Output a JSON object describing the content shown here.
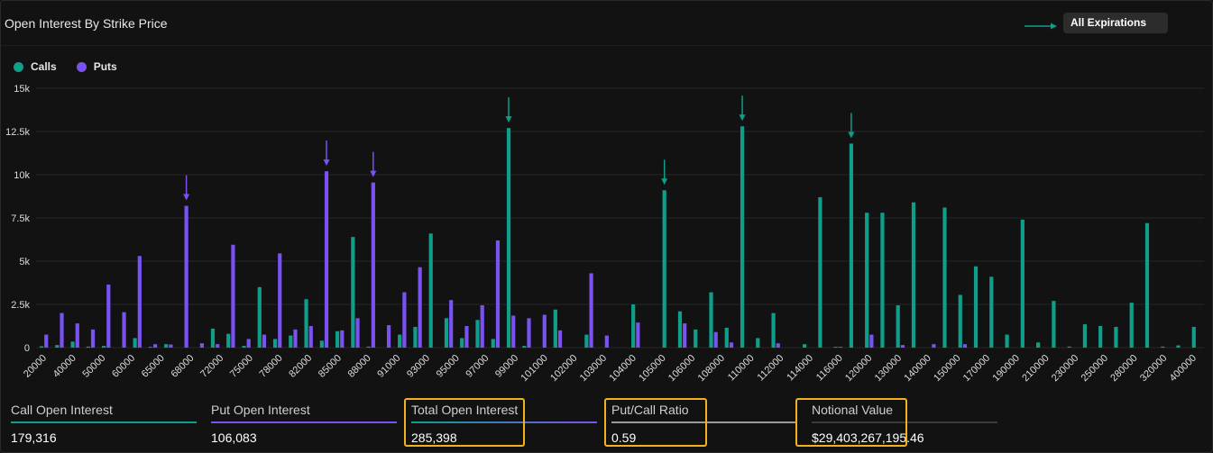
{
  "header": {
    "title": "Open Interest By Strike Price"
  },
  "expiration_select": {
    "value": "All Expirations"
  },
  "colors": {
    "calls": "#0f9e8a",
    "puts": "#7a52f2",
    "highlight": "#f2b21b",
    "arrow_puts": "#7a52f2",
    "arrow_calls": "#0f9e8a"
  },
  "legend": {
    "calls_label": "Calls",
    "puts_label": "Puts"
  },
  "stats": {
    "call_oi": {
      "label": "Call Open Interest",
      "value": "179,316"
    },
    "put_oi": {
      "label": "Put Open Interest",
      "value": "106,083"
    },
    "total_oi": {
      "label": "Total Open Interest",
      "value": "285,398"
    },
    "pc_ratio": {
      "label": "Put/Call Ratio",
      "value": "0.59"
    },
    "notional": {
      "label": "Notional Value",
      "value": "$29,403,267,195.46"
    }
  },
  "chart_data": {
    "type": "bar",
    "x_tick_labels": [
      "20000",
      "40000",
      "50000",
      "60000",
      "65000",
      "68000",
      "72000",
      "75000",
      "78000",
      "82000",
      "85000",
      "88000",
      "91000",
      "93000",
      "95000",
      "97000",
      "99000",
      "101000",
      "102000",
      "103000",
      "104000",
      "105000",
      "106000",
      "108000",
      "110000",
      "112000",
      "114000",
      "116000",
      "120000",
      "130000",
      "140000",
      "150000",
      "170000",
      "190000",
      "210000",
      "230000",
      "250000",
      "280000",
      "320000",
      "400000"
    ],
    "y_ticks": [
      0,
      2500,
      5000,
      7500,
      10000,
      12500,
      15000
    ],
    "y_tick_labels": [
      "0",
      "2.5k",
      "5k",
      "7.5k",
      "10k",
      "12.5k",
      "15k"
    ],
    "ylim": [
      0,
      15000
    ],
    "series": [
      {
        "name": "Calls",
        "values": [
          80,
          150,
          350,
          60,
          100,
          0,
          550,
          50,
          200,
          0,
          0,
          1100,
          800,
          100,
          3500,
          500,
          700,
          2800,
          400,
          950,
          6400,
          60,
          0,
          750,
          1200,
          6600,
          1700,
          550,
          1600,
          500,
          12700,
          100,
          0,
          2200,
          0,
          750,
          0,
          0,
          2500,
          0,
          9100,
          2100,
          1050,
          3200,
          1150,
          12800,
          550,
          2000,
          0,
          200,
          8700,
          50,
          11800,
          7800,
          7800,
          2450,
          8400,
          0,
          8100,
          3050,
          4700,
          4100,
          750,
          7400,
          300,
          2700,
          60,
          1350,
          1250,
          1200,
          2600,
          7200,
          60,
          130,
          1200
        ]
      },
      {
        "name": "Puts",
        "values": [
          750,
          2000,
          1400,
          1050,
          3650,
          2050,
          5300,
          200,
          180,
          8200,
          250,
          200,
          5950,
          500,
          750,
          5450,
          1050,
          1250,
          10200,
          1000,
          1700,
          9550,
          1300,
          3200,
          4650,
          0,
          2750,
          1250,
          2450,
          6200,
          1850,
          1700,
          1900,
          1000,
          0,
          4300,
          700,
          0,
          1450,
          0,
          0,
          1400,
          0,
          900,
          300,
          0,
          0,
          250,
          0,
          0,
          0,
          50,
          0,
          750,
          0,
          150,
          0,
          200,
          0,
          200,
          0,
          0,
          0,
          0,
          0,
          0,
          0,
          0,
          0,
          0,
          0,
          0,
          0,
          0,
          0
        ]
      }
    ],
    "grid": true,
    "legend_position": "top-left"
  }
}
